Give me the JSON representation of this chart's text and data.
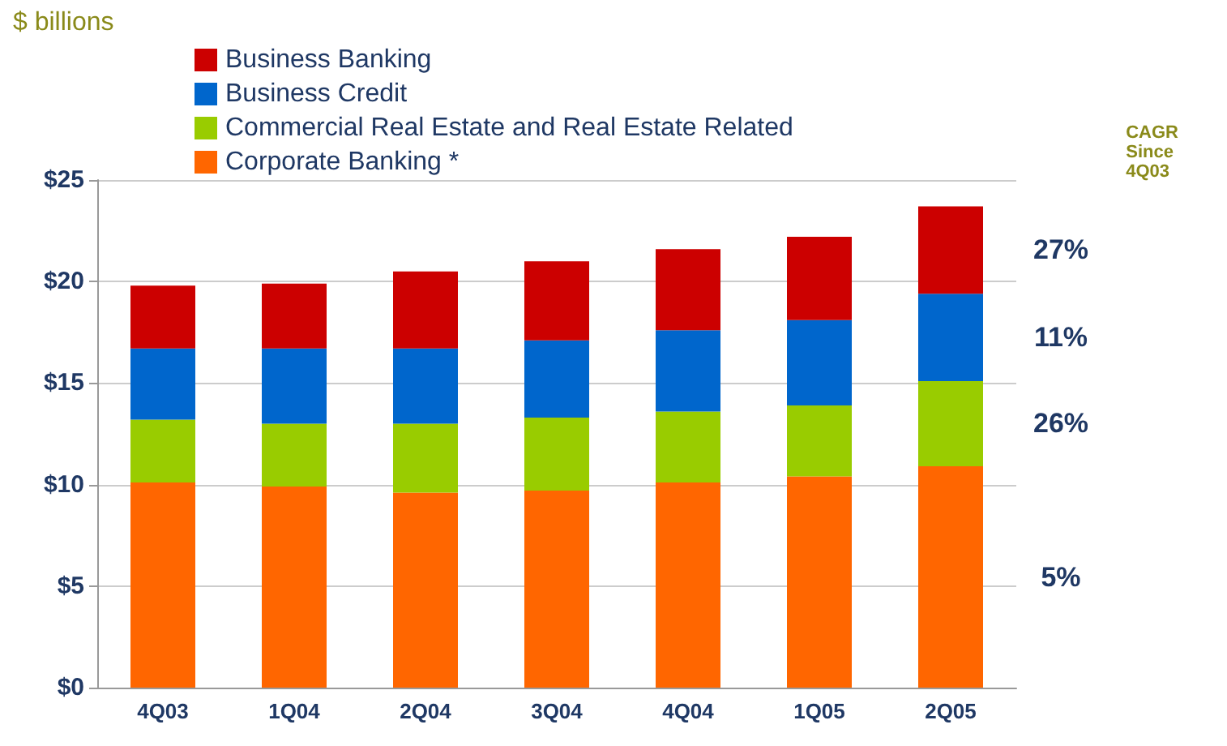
{
  "chart_data": {
    "type": "bar",
    "stacked": true,
    "ylabel": "$ billions",
    "categories": [
      "4Q03",
      "1Q04",
      "2Q04",
      "3Q04",
      "4Q04",
      "1Q05",
      "2Q05"
    ],
    "series": [
      {
        "name": "Corporate Banking *",
        "color": "#ff6600",
        "values": [
          10.1,
          9.9,
          9.6,
          9.7,
          10.1,
          10.4,
          10.9
        ]
      },
      {
        "name": "Commercial Real Estate and Real Estate Related",
        "color": "#99cc00",
        "values": [
          3.1,
          3.1,
          3.4,
          3.6,
          3.5,
          3.5,
          4.2
        ]
      },
      {
        "name": "Business Credit",
        "color": "#0066cc",
        "values": [
          3.5,
          3.7,
          3.7,
          3.8,
          4.0,
          4.2,
          4.3
        ]
      },
      {
        "name": "Business Banking",
        "color": "#cc0000",
        "values": [
          3.1,
          3.2,
          3.8,
          3.9,
          4.0,
          4.1,
          4.3
        ]
      }
    ],
    "ylim": [
      0,
      25
    ],
    "yticks": [
      {
        "value": 0,
        "label": "$0"
      },
      {
        "value": 5,
        "label": "$5"
      },
      {
        "value": 10,
        "label": "$10"
      },
      {
        "value": 15,
        "label": "$15"
      },
      {
        "value": 20,
        "label": "$20"
      },
      {
        "value": 25,
        "label": "$25"
      }
    ],
    "grid": "y",
    "legend": "top left",
    "annotations": [
      "CAGR Since 4Q03",
      "27%",
      "11%",
      "26%",
      "5%"
    ]
  }
}
